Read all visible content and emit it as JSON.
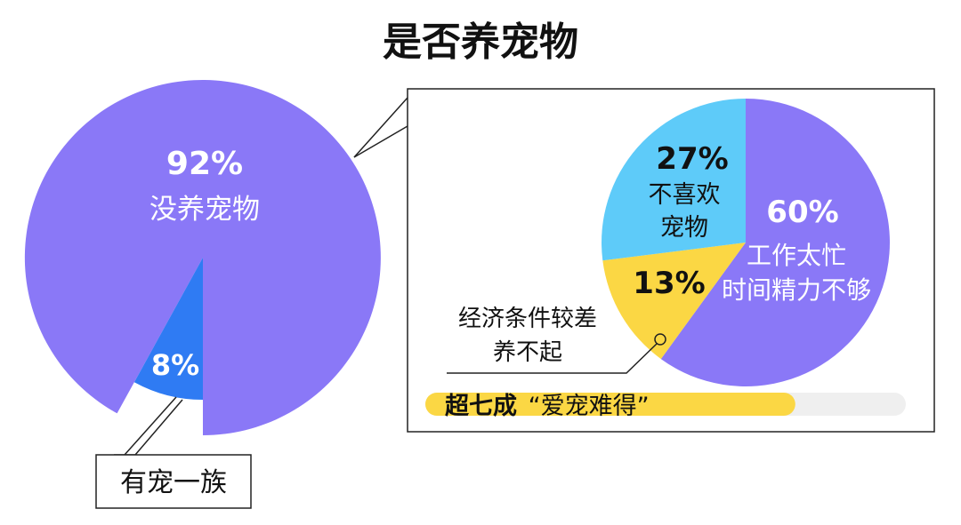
{
  "title": "是否养宠物",
  "colors": {
    "main_purple": "#8a78f7",
    "own_blue": "#2f7bf3",
    "light_blue": "#5ecbf9",
    "yellow": "#fbd744",
    "bar_track": "#efefef",
    "text_dark": "#111111",
    "text_white": "#ffffff"
  },
  "chart_data": [
    {
      "type": "pie",
      "title": "是否养宠物",
      "slices": [
        {
          "label": "没养宠物",
          "value": 92,
          "value_label": "92%"
        },
        {
          "label": "有宠一族",
          "value": 8,
          "value_label": "8%"
        }
      ]
    },
    {
      "type": "pie",
      "slices": [
        {
          "label": "工作太忙时间精力不够",
          "value": 60,
          "value_label": "60%"
        },
        {
          "label": "经济条件较差养不起",
          "value": 13,
          "value_label": "13%"
        },
        {
          "label": "不喜欢宠物",
          "value": 27,
          "value_label": "27%"
        }
      ]
    }
  ],
  "labels": {
    "no_pet_pct": "92%",
    "no_pet_text": "没养宠物",
    "own_pct": "8%",
    "own_callout": "有宠一族",
    "busy_pct": "60%",
    "busy_line1": "工作太忙",
    "busy_line2": "时间精力不够",
    "dislike_pct": "27%",
    "dislike_line1": "不喜欢",
    "dislike_line2": "宠物",
    "cost_pct": "13%",
    "cost_line1": "经济条件较差",
    "cost_line2": "养不起"
  },
  "summary_bar": {
    "bold_text": "超七成",
    "quote_text": "“爱宠难得”",
    "fill_fraction": 0.77
  }
}
